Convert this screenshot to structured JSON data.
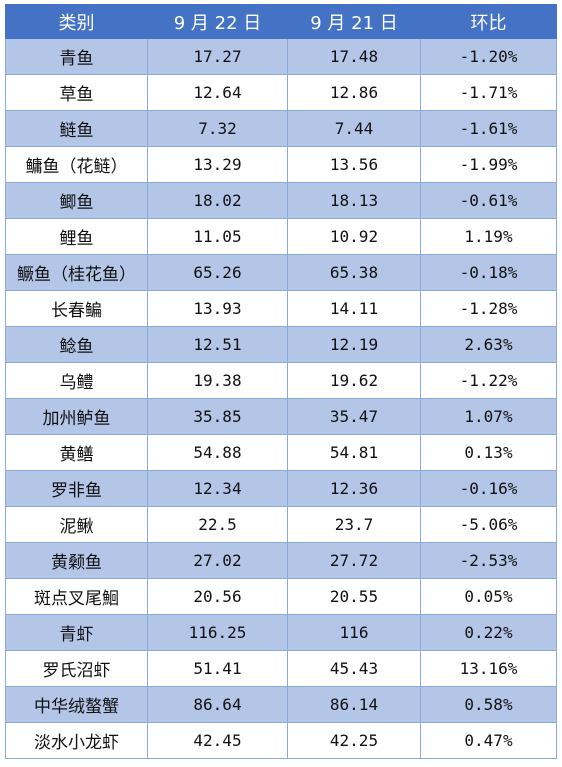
{
  "table": {
    "headers": [
      "类别",
      "9 月 22 日",
      "9 月 21 日",
      "环比"
    ],
    "rows": [
      {
        "name": "青鱼",
        "sep22": "17.27",
        "sep21": "17.48",
        "change": "-1.20%"
      },
      {
        "name": "草鱼",
        "sep22": "12.64",
        "sep21": "12.86",
        "change": "-1.71%"
      },
      {
        "name": "鲢鱼",
        "sep22": "7.32",
        "sep21": "7.44",
        "change": "-1.61%"
      },
      {
        "name": "鳙鱼（花鲢）",
        "sep22": "13.29",
        "sep21": "13.56",
        "change": "-1.99%"
      },
      {
        "name": "鲫鱼",
        "sep22": "18.02",
        "sep21": "18.13",
        "change": "-0.61%"
      },
      {
        "name": "鲤鱼",
        "sep22": "11.05",
        "sep21": "10.92",
        "change": "1.19%"
      },
      {
        "name": "鳜鱼（桂花鱼）",
        "sep22": "65.26",
        "sep21": "65.38",
        "change": "-0.18%"
      },
      {
        "name": "长春鳊",
        "sep22": "13.93",
        "sep21": "14.11",
        "change": "-1.28%"
      },
      {
        "name": "鲶鱼",
        "sep22": "12.51",
        "sep21": "12.19",
        "change": "2.63%"
      },
      {
        "name": "乌鳢",
        "sep22": "19.38",
        "sep21": "19.62",
        "change": "-1.22%"
      },
      {
        "name": "加州鲈鱼",
        "sep22": "35.85",
        "sep21": "35.47",
        "change": "1.07%"
      },
      {
        "name": "黄鳝",
        "sep22": "54.88",
        "sep21": "54.81",
        "change": "0.13%"
      },
      {
        "name": "罗非鱼",
        "sep22": "12.34",
        "sep21": "12.36",
        "change": "-0.16%"
      },
      {
        "name": "泥鳅",
        "sep22": "22.5",
        "sep21": "23.7",
        "change": "-5.06%"
      },
      {
        "name": "黄颡鱼",
        "sep22": "27.02",
        "sep21": "27.72",
        "change": "-2.53%"
      },
      {
        "name": "斑点叉尾鮰",
        "sep22": "20.56",
        "sep21": "20.55",
        "change": "0.05%"
      },
      {
        "name": "青虾",
        "sep22": "116.25",
        "sep21": "116",
        "change": "0.22%"
      },
      {
        "name": "罗氏沼虾",
        "sep22": "51.41",
        "sep21": "45.43",
        "change": "13.16%"
      },
      {
        "name": "中华绒螯蟹",
        "sep22": "86.64",
        "sep21": "86.14",
        "change": "0.58%"
      },
      {
        "name": "淡水小龙虾",
        "sep22": "42.45",
        "sep21": "42.25",
        "change": "0.47%"
      }
    ]
  },
  "colors": {
    "header_bg": "#4472c4",
    "band_bg": "#b4c6e7",
    "border": "#8eaadb"
  }
}
